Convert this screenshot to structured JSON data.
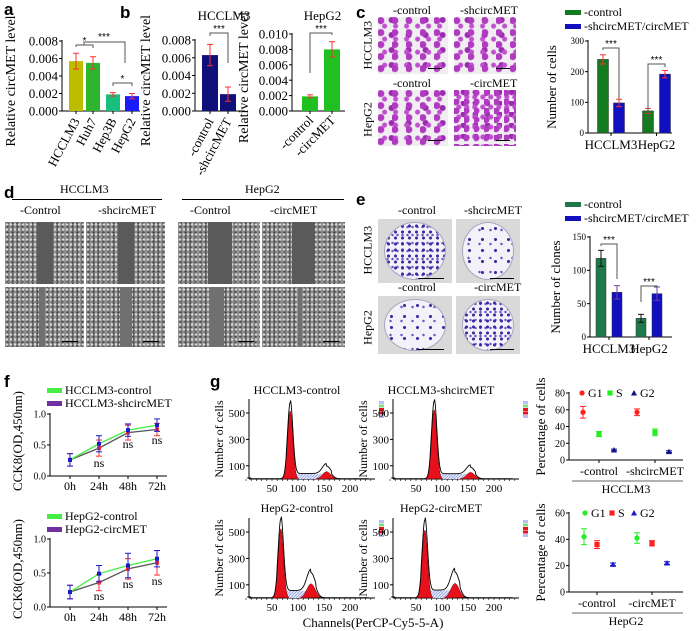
{
  "panel_labels": [
    "a",
    "b",
    "c",
    "d",
    "e",
    "f",
    "g"
  ],
  "photos": {
    "c": {
      "cols": [
        "-control",
        "-shcircMET",
        "-control",
        "-circMET"
      ],
      "rows": [
        "HCCLM3",
        "HepG2"
      ]
    },
    "d": {
      "groups": [
        "HCCLM3",
        "HepG2"
      ],
      "cols": [
        "-Control",
        "-shcircMET",
        "-Control",
        "-circMET"
      ]
    },
    "e": {
      "cols": [
        "-control",
        "-shcircMET",
        "-control",
        "-circMET"
      ],
      "rows": [
        "HCCLM3",
        "HepG2"
      ]
    }
  },
  "chart_data": [
    {
      "id": "a",
      "type": "bar",
      "title": "",
      "ylabel": "Relative circMET level",
      "categories": [
        "HCCLM3",
        "Huh7",
        "Hep3B",
        "HepG2"
      ],
      "values": [
        0.0057,
        0.0055,
        0.0019,
        0.0017
      ],
      "errors": [
        0.0009,
        0.0007,
        0.0002,
        0.0003
      ],
      "colors": [
        "#bdbd00",
        "#2db52d",
        "#18bf7e",
        "#1a1aff"
      ],
      "ylim": [
        0,
        0.008
      ],
      "yticks": [
        "0.000",
        "0.002",
        "0.004",
        "0.006",
        "0.008"
      ],
      "annotations": [
        "*",
        "***",
        "*"
      ]
    },
    {
      "id": "b1",
      "type": "bar",
      "title": "HCCLM3",
      "ylabel": "Relative circMET level",
      "categories": [
        "-control",
        "-shcircMET"
      ],
      "values": [
        0.0063,
        0.0019
      ],
      "errors": [
        0.0012,
        0.0008
      ],
      "colors": [
        "#10107a",
        "#10107a"
      ],
      "ylim": [
        0,
        0.008
      ],
      "yticks": [
        "0.000",
        "0.002",
        "0.004",
        "0.006",
        "0.008"
      ],
      "annotations": [
        "***"
      ]
    },
    {
      "id": "b2",
      "type": "bar",
      "title": "HepG2",
      "ylabel": "Relative circMET level",
      "categories": [
        "-control",
        "-circMET"
      ],
      "values": [
        0.0019,
        0.008
      ],
      "errors": [
        0.0002,
        0.001
      ],
      "colors": [
        "#20c020",
        "#20c020"
      ],
      "ylim": [
        0,
        0.01
      ],
      "yticks": [
        "0.000",
        "0.002",
        "0.004",
        "0.006",
        "0.008",
        "0.010"
      ],
      "annotations": [
        "***"
      ]
    },
    {
      "id": "c",
      "type": "bar",
      "ylabel": "Number of cells",
      "categories": [
        "HCCLM3",
        "HepG2"
      ],
      "ylim": [
        0,
        300
      ],
      "yticks": [
        "0",
        "100",
        "200",
        "300"
      ],
      "annotations": [
        "***",
        "***"
      ],
      "series": [
        {
          "name": "-control",
          "values": [
            240,
            72
          ],
          "errors": [
            15,
            8
          ],
          "color": "#137a1f"
        },
        {
          "name": "-shcircMET/circMET",
          "values": [
            98,
            192
          ],
          "errors": [
            12,
            12
          ],
          "color": "#1010c0"
        }
      ]
    },
    {
      "id": "e",
      "type": "bar",
      "ylabel": "Number of clones",
      "categories": [
        "HCCLM3",
        "HepG2"
      ],
      "ylim": [
        0,
        150
      ],
      "yticks": [
        "0",
        "50",
        "100",
        "150"
      ],
      "annotations": [
        "***",
        "***"
      ],
      "series": [
        {
          "name": "-control",
          "values": [
            118,
            28
          ],
          "errors": [
            12,
            6
          ],
          "color": "#1e7a4a"
        },
        {
          "name": "-shcircMET/circMET",
          "values": [
            67,
            65
          ],
          "errors": [
            10,
            10
          ],
          "color": "#1010c0"
        }
      ]
    },
    {
      "id": "f1",
      "type": "line",
      "ylabel": "CCK8(OD,450nm)",
      "x": [
        "0h",
        "24h",
        "48h",
        "72h"
      ],
      "ylim": [
        0,
        1
      ],
      "yticks": [
        "0.0",
        "0.5",
        "1.0"
      ],
      "annotations": [
        "ns",
        "ns",
        "ns"
      ],
      "series": [
        {
          "name": "HCCLM3-control",
          "values": [
            0.26,
            0.52,
            0.74,
            0.82
          ],
          "errors": [
            0.1,
            0.13,
            0.1,
            0.1
          ],
          "color": "#44ee44",
          "marker_color": "#1a1acc"
        },
        {
          "name": "HCCLM3-shcircMET",
          "values": [
            0.26,
            0.45,
            0.7,
            0.75
          ],
          "errors": [
            0.1,
            0.13,
            0.12,
            0.1
          ],
          "color": "#555555",
          "marker_color": "#ff3030",
          "legend_color": "#7030a0"
        }
      ]
    },
    {
      "id": "f2",
      "type": "line",
      "ylabel": "CCK8(OD,450nm)",
      "x": [
        "0h",
        "24h",
        "48h",
        "72h"
      ],
      "ylim": [
        0,
        1
      ],
      "yticks": [
        "0.0",
        "0.5",
        "1.0"
      ],
      "annotations": [
        "ns",
        "ns",
        "ns"
      ],
      "series": [
        {
          "name": "HepG2-control",
          "values": [
            0.22,
            0.49,
            0.61,
            0.71
          ],
          "errors": [
            0.1,
            0.12,
            0.18,
            0.12
          ],
          "color": "#44ee44",
          "marker_color": "#1a1acc"
        },
        {
          "name": "HepG2-circMET",
          "values": [
            0.22,
            0.36,
            0.56,
            0.65
          ],
          "errors": [
            0.1,
            0.12,
            0.15,
            0.18
          ],
          "color": "#555555",
          "marker_color": "#ff3030",
          "legend_color": "#7030a0"
        }
      ]
    },
    {
      "id": "g",
      "type": "histogram",
      "xlabel": "Channels(PerCP-Cy5-5-A)",
      "ylabel": "Number of cells",
      "xticks": [
        "50",
        "100",
        "150",
        "200"
      ],
      "yticks": [
        "100",
        "300",
        "500"
      ],
      "xlim": [
        0,
        240
      ],
      "ylim": [
        0,
        600
      ],
      "panels": [
        {
          "title": "HCCLM3-control",
          "g1_channel": 85,
          "g1_count": 560,
          "g2_channel": 155,
          "g2_count": 100,
          "s_level": 40
        },
        {
          "title": "HCCLM3-shcircMET",
          "g1_channel": 85,
          "g1_count": 570,
          "g2_channel": 155,
          "g2_count": 90,
          "s_level": 38
        },
        {
          "title": "HepG2-control",
          "g1_channel": 67,
          "g1_count": 570,
          "g2_channel": 125,
          "g2_count": 195,
          "s_level": 55
        },
        {
          "title": "HepG2-circMET",
          "g1_channel": 67,
          "g1_count": 560,
          "g2_channel": 125,
          "g2_count": 200,
          "s_level": 58
        }
      ]
    },
    {
      "id": "h1",
      "type": "scatter",
      "ylabel": "Percentage of cells",
      "group_label": "HCCLM3",
      "categories": [
        "-control",
        "-shcircMET"
      ],
      "ylim": [
        0,
        80
      ],
      "yticks": [
        "0",
        "20",
        "40",
        "60",
        "80"
      ],
      "series": [
        {
          "name": "G1",
          "values": [
            57,
            57
          ],
          "errors": [
            7,
            4
          ],
          "color": "#ff2020",
          "marker": "circle"
        },
        {
          "name": "S",
          "values": [
            31,
            33
          ],
          "errors": [
            3,
            4
          ],
          "color": "#22ee22",
          "marker": "square"
        },
        {
          "name": "G2",
          "values": [
            12,
            10
          ],
          "errors": [
            1,
            1
          ],
          "color": "#10108a",
          "marker": "triangle"
        }
      ]
    },
    {
      "id": "h2",
      "type": "scatter",
      "ylabel": "Percentage of cells",
      "group_label": "HepG2",
      "categories": [
        "-control",
        "-circMET"
      ],
      "ylim": [
        0,
        60
      ],
      "yticks": [
        "0",
        "20",
        "40",
        "60"
      ],
      "series": [
        {
          "name": "G1",
          "values": [
            42,
            41
          ],
          "errors": [
            6,
            4
          ],
          "color": "#22ee22",
          "marker": "circle"
        },
        {
          "name": "S",
          "values": [
            36,
            37
          ],
          "errors": [
            3,
            2
          ],
          "color": "#ff2020",
          "marker": "square"
        },
        {
          "name": "G2",
          "values": [
            21,
            22
          ],
          "errors": [
            1,
            1
          ],
          "color": "#1a1acc",
          "marker": "triangle"
        }
      ]
    }
  ]
}
